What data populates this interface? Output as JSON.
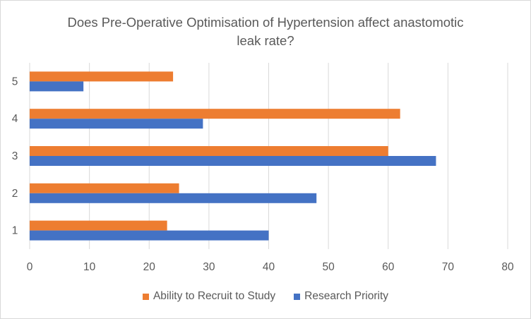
{
  "chart_data": {
    "type": "bar",
    "orientation": "horizontal",
    "title": "Does Pre-Operative Optimisation of Hypertension affect anastomotic leak rate?",
    "title_lines": [
      "Does Pre-Operative Optimisation of Hypertension affect anastomotic",
      "leak rate?"
    ],
    "categories": [
      "1",
      "2",
      "3",
      "4",
      "5"
    ],
    "series": [
      {
        "name": "Research Priority",
        "color": "#4472C4",
        "values": [
          40,
          48,
          68,
          29,
          9
        ]
      },
      {
        "name": "Ability to Recruit to Study",
        "color": "#ED7D31",
        "values": [
          23,
          25,
          60,
          62,
          24
        ]
      }
    ],
    "x_ticks": [
      "0",
      "10",
      "20",
      "30",
      "40",
      "50",
      "60",
      "70",
      "80"
    ],
    "xlim": [
      0,
      80
    ],
    "grid": "vertical",
    "legend_position": "bottom",
    "legend_order": [
      "Ability to Recruit to Study",
      "Research Priority"
    ]
  }
}
